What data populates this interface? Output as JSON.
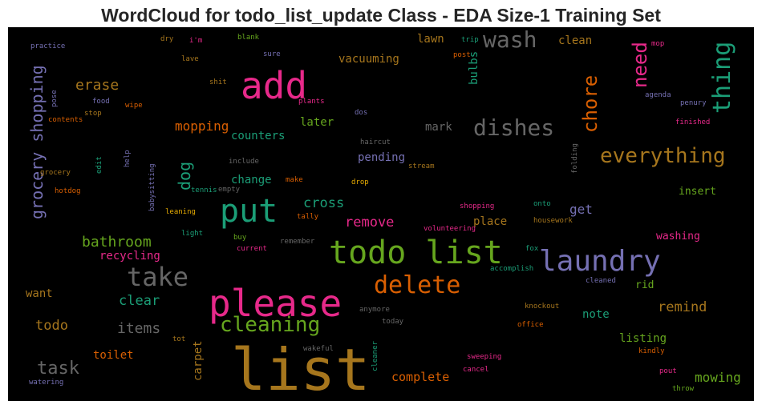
{
  "chart_data": {
    "type": "wordcloud",
    "title": "WordCloud for todo_list_update Class - EDA Size-1 Training Set",
    "background": "#000000",
    "palette": {
      "pink": "#e7298a",
      "olive": "#66a61e",
      "orange": "#d95f02",
      "purple": "#7570b3",
      "green": "#1b9e77",
      "gray": "#666666",
      "gold": "#a6761d",
      "yellow": "#e6ab02"
    },
    "words": [
      {
        "text": "list",
        "color": "gold"
      },
      {
        "text": "please",
        "color": "pink"
      },
      {
        "text": "todo list",
        "color": "olive"
      },
      {
        "text": "add",
        "color": "pink"
      },
      {
        "text": "put",
        "color": "green"
      },
      {
        "text": "laundry",
        "color": "purple"
      },
      {
        "text": "take",
        "color": "gray"
      },
      {
        "text": "wash",
        "color": "gray"
      },
      {
        "text": "dishes",
        "color": "gray"
      },
      {
        "text": "thing",
        "color": "green"
      },
      {
        "text": "delete",
        "color": "orange"
      },
      {
        "text": "cleaning",
        "color": "olive"
      },
      {
        "text": "chore",
        "color": "orange"
      },
      {
        "text": "everything",
        "color": "gold"
      },
      {
        "text": "grocery shopping",
        "color": "purple"
      },
      {
        "text": "need",
        "color": "pink"
      },
      {
        "text": "task",
        "color": "gray"
      },
      {
        "text": "bathroom",
        "color": "olive"
      },
      {
        "text": "dog",
        "color": "green"
      },
      {
        "text": "erase",
        "color": "gold"
      },
      {
        "text": "mopping",
        "color": "orange"
      },
      {
        "text": "items",
        "color": "gray"
      },
      {
        "text": "remove",
        "color": "pink"
      },
      {
        "text": "clear",
        "color": "green"
      },
      {
        "text": "todo",
        "color": "gold"
      },
      {
        "text": "cross",
        "color": "green"
      },
      {
        "text": "remind",
        "color": "gold"
      },
      {
        "text": "mowing",
        "color": "olive"
      },
      {
        "text": "counters",
        "color": "green"
      },
      {
        "text": "mark",
        "color": "gray"
      },
      {
        "text": "complete",
        "color": "orange"
      },
      {
        "text": "vacuuming",
        "color": "gold"
      },
      {
        "text": "later",
        "color": "olive"
      },
      {
        "text": "change",
        "color": "green"
      },
      {
        "text": "pending",
        "color": "purple"
      },
      {
        "text": "place",
        "color": "gold"
      },
      {
        "text": "get",
        "color": "purple"
      },
      {
        "text": "toilet",
        "color": "orange"
      },
      {
        "text": "want",
        "color": "gold"
      },
      {
        "text": "recycling",
        "color": "pink"
      },
      {
        "text": "carpet",
        "color": "gold"
      },
      {
        "text": "bulbs",
        "color": "green"
      },
      {
        "text": "lawn",
        "color": "gold"
      },
      {
        "text": "clean",
        "color": "gold"
      },
      {
        "text": "insert",
        "color": "olive"
      },
      {
        "text": "washing",
        "color": "pink"
      },
      {
        "text": "rid",
        "color": "olive"
      },
      {
        "text": "note",
        "color": "green"
      },
      {
        "text": "listing",
        "color": "olive"
      },
      {
        "text": "practice",
        "color": "purple"
      },
      {
        "text": "dry",
        "color": "gold"
      },
      {
        "text": "i'm",
        "color": "pink"
      },
      {
        "text": "blank",
        "color": "olive"
      },
      {
        "text": "trip",
        "color": "green"
      },
      {
        "text": "post",
        "color": "orange"
      },
      {
        "text": "mop",
        "color": "pink"
      },
      {
        "text": "lave",
        "color": "gold"
      },
      {
        "text": "sure",
        "color": "purple"
      },
      {
        "text": "shit",
        "color": "gold"
      },
      {
        "text": "agenda",
        "color": "purple"
      },
      {
        "text": "pose",
        "color": "purple"
      },
      {
        "text": "food",
        "color": "purple"
      },
      {
        "text": "wipe",
        "color": "orange"
      },
      {
        "text": "plants",
        "color": "pink"
      },
      {
        "text": "penury",
        "color": "purple"
      },
      {
        "text": "stop",
        "color": "gold"
      },
      {
        "text": "dos",
        "color": "purple"
      },
      {
        "text": "contents",
        "color": "orange"
      },
      {
        "text": "finished",
        "color": "pink"
      },
      {
        "text": "haircut",
        "color": "gray"
      },
      {
        "text": "include",
        "color": "gray"
      },
      {
        "text": "stream",
        "color": "gold"
      },
      {
        "text": "grocery",
        "color": "gold"
      },
      {
        "text": "edit",
        "color": "green"
      },
      {
        "text": "help",
        "color": "purple"
      },
      {
        "text": "folding",
        "color": "gray"
      },
      {
        "text": "make",
        "color": "orange"
      },
      {
        "text": "drop",
        "color": "yellow"
      },
      {
        "text": "hotdog",
        "color": "orange"
      },
      {
        "text": "babysitting",
        "color": "purple"
      },
      {
        "text": "tennis",
        "color": "green"
      },
      {
        "text": "empty",
        "color": "gray"
      },
      {
        "text": "shopping",
        "color": "pink"
      },
      {
        "text": "onto",
        "color": "green"
      },
      {
        "text": "leaning",
        "color": "yellow"
      },
      {
        "text": "tally",
        "color": "orange"
      },
      {
        "text": "housework",
        "color": "gold"
      },
      {
        "text": "light",
        "color": "green"
      },
      {
        "text": "buy",
        "color": "olive"
      },
      {
        "text": "remember",
        "color": "gray"
      },
      {
        "text": "volunteering",
        "color": "pink"
      },
      {
        "text": "current",
        "color": "pink"
      },
      {
        "text": "fox",
        "color": "green"
      },
      {
        "text": "accomplish",
        "color": "green"
      },
      {
        "text": "cleaned",
        "color": "purple"
      },
      {
        "text": "anymore",
        "color": "gray"
      },
      {
        "text": "knockout",
        "color": "gold"
      },
      {
        "text": "today",
        "color": "gray"
      },
      {
        "text": "office",
        "color": "orange"
      },
      {
        "text": "tot",
        "color": "gold"
      },
      {
        "text": "wakeful",
        "color": "gray"
      },
      {
        "text": "cleaner",
        "color": "green"
      },
      {
        "text": "kindly",
        "color": "orange"
      },
      {
        "text": "sweeping",
        "color": "pink"
      },
      {
        "text": "cancel",
        "color": "pink"
      },
      {
        "text": "pout",
        "color": "pink"
      },
      {
        "text": "watering",
        "color": "purple"
      },
      {
        "text": "throw",
        "color": "olive"
      }
    ]
  }
}
